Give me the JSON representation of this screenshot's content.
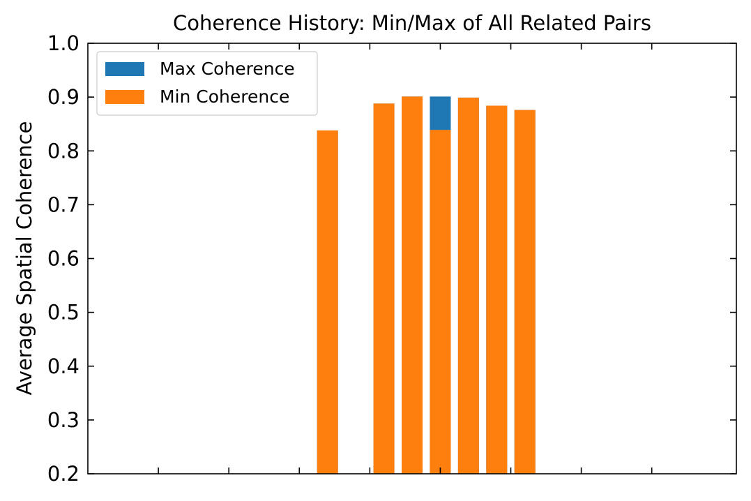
{
  "chart_data": {
    "type": "bar",
    "title": "Coherence History: Min/Max of All Related Pairs",
    "xlabel": "",
    "ylabel": "Average Spatial Coherence",
    "ylim": [
      0.2,
      1.0
    ],
    "yticks": [
      "0.2",
      "0.3",
      "0.4",
      "0.5",
      "0.6",
      "0.7",
      "0.8",
      "0.9",
      "1.0"
    ],
    "x": [
      4,
      6,
      7,
      8,
      9,
      10,
      11
    ],
    "xlim": [
      -4.5,
      18.5
    ],
    "xticks": [
      -2,
      0.5,
      3,
      5.5,
      8,
      10.5,
      13,
      15.5
    ],
    "grid": false,
    "legend": "upper-left",
    "series": [
      {
        "name": "Max Coherence",
        "color": "#1f77b4",
        "values": [
          0.838,
          0.888,
          0.901,
          0.901,
          0.899,
          0.884,
          0.876
        ]
      },
      {
        "name": "Min Coherence",
        "color": "#ff7f0e",
        "values": [
          0.838,
          0.888,
          0.901,
          0.839,
          0.899,
          0.884,
          0.876
        ]
      }
    ]
  }
}
